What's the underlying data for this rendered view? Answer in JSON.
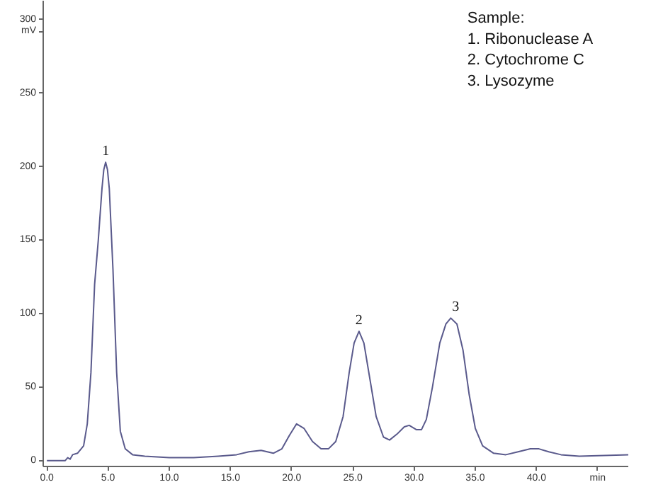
{
  "chart_data": {
    "type": "line",
    "ylabel": "mV",
    "xlabel": "min",
    "x": [
      0,
      1.5,
      1.7,
      1.9,
      2.1,
      2.5,
      3.0,
      3.3,
      3.6,
      3.9,
      4.2,
      4.5,
      4.65,
      4.8,
      4.95,
      5.1,
      5.4,
      5.7,
      6.0,
      6.4,
      7,
      8,
      10,
      12,
      14,
      15.5,
      16.5,
      17.5,
      18.5,
      19.2,
      19.8,
      20.4,
      21,
      21.7,
      22.4,
      23,
      23.6,
      24.2,
      24.7,
      25.1,
      25.5,
      25.9,
      26.4,
      26.9,
      27.5,
      28,
      28.6,
      29.2,
      29.6,
      30.2,
      30.6,
      31,
      31.5,
      32.1,
      32.6,
      33.0,
      33.5,
      34,
      34.5,
      35,
      35.6,
      36.5,
      37.5,
      38.5,
      39.5,
      40.2,
      41,
      42,
      43.5,
      47.5
    ],
    "series": [
      {
        "color": "#5a5a8c",
        "values": [
          0,
          0,
          2,
          1,
          4,
          5,
          10,
          25,
          60,
          120,
          150,
          185,
          198,
          203,
          198,
          185,
          130,
          60,
          20,
          8,
          4,
          3,
          2,
          2,
          3,
          4,
          6,
          7,
          5,
          8,
          17,
          25,
          22,
          13,
          8,
          8,
          13,
          30,
          60,
          80,
          88,
          80,
          55,
          30,
          16,
          14,
          18,
          23,
          24,
          21,
          21,
          28,
          50,
          80,
          93,
          97,
          93,
          75,
          45,
          22,
          10,
          5,
          4,
          6,
          8,
          8,
          6,
          4,
          3,
          4
        ]
      }
    ],
    "xlim": [
      -0.3,
      47.5
    ],
    "ylim": [
      -4,
      313
    ],
    "xticks": [
      {
        "value": 0,
        "label": "0.0"
      },
      {
        "value": 5,
        "label": "5.0"
      },
      {
        "value": 10,
        "label": "10.0"
      },
      {
        "value": 15,
        "label": "15.0"
      },
      {
        "value": 20,
        "label": "20.0"
      },
      {
        "value": 25,
        "label": "25.0"
      },
      {
        "value": 30,
        "label": "30.0"
      },
      {
        "value": 35,
        "label": "35.0"
      },
      {
        "value": 40,
        "label": "40.0"
      }
    ],
    "yticks": [
      0,
      50,
      100,
      150,
      200,
      250,
      300
    ],
    "grid": false,
    "marker": "none",
    "line_style": "solid",
    "annotations": [
      {
        "text": "1",
        "x": 4.8,
        "y": 203
      },
      {
        "text": "2",
        "x": 25.5,
        "y": 88
      },
      {
        "text": "3",
        "x": 33.4,
        "y": 97
      },
      "Sample:",
      "1. Ribonuclease A",
      "2. Cytochrome C",
      "3. Lysozyme"
    ]
  }
}
